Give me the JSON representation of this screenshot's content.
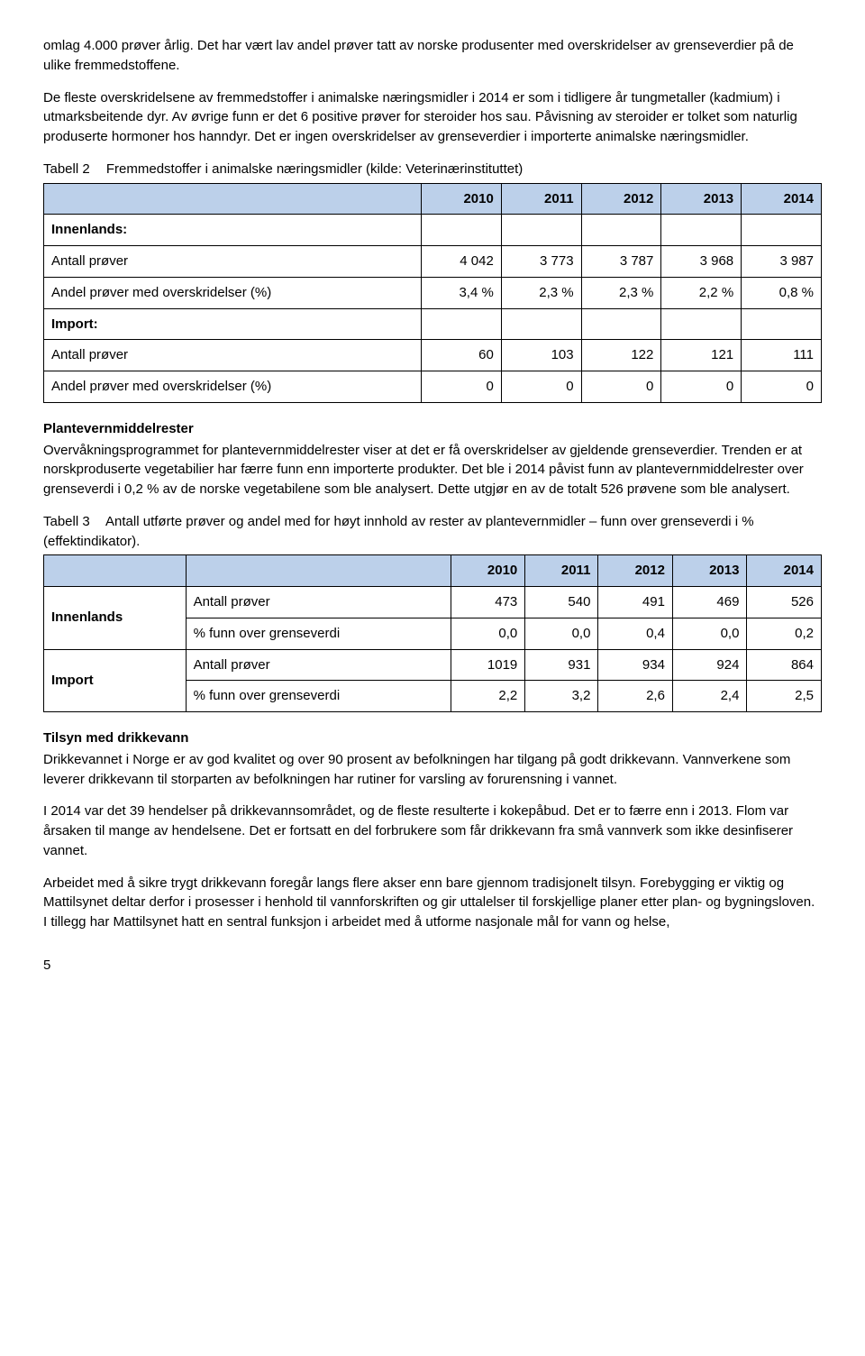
{
  "colors": {
    "table_header_bg": "#bcd0ea",
    "border": "#000000",
    "text": "#000000",
    "bg": "#ffffff"
  },
  "para1": "omlag 4.000 prøver årlig. Det har vært lav andel prøver tatt av norske produsenter med overskridelser av grenseverdier på de ulike fremmedstoffene.",
  "para2": "De fleste overskridelsene av fremmedstoffer i animalske næringsmidler i 2014 er som i tidligere år tungmetaller (kadmium) i utmarksbeitende dyr. Av øvrige funn er det 6 positive prøver for steroider hos sau. Påvisning av steroider er tolket som naturlig produserte hormoner hos hanndyr. Det er ingen overskridelser av grenseverdier i importerte animalske næringsmidler.",
  "table2": {
    "label": "Tabell 2",
    "title": "Fremmedstoffer i animalske næringsmidler (kilde: Veterinærinstituttet)",
    "years": [
      "2010",
      "2011",
      "2012",
      "2013",
      "2014"
    ],
    "sections": {
      "innenlands": "Innenlands:",
      "import": "Import:"
    },
    "rows": {
      "r1_label": "Antall prøver",
      "r1": [
        "4 042",
        "3 773",
        "3 787",
        "3 968",
        "3 987"
      ],
      "r2_label": "Andel prøver med overskridelser (%)",
      "r2": [
        "3,4 %",
        "2,3 %",
        "2,3 %",
        "2,2 %",
        "0,8 %"
      ],
      "r3_label": "Antall prøver",
      "r3": [
        "60",
        "103",
        "122",
        "121",
        "111"
      ],
      "r4_label": "Andel prøver med overskridelser (%)",
      "r4": [
        "0",
        "0",
        "0",
        "0",
        "0"
      ]
    }
  },
  "plantHead": "Plantevernmiddelrester",
  "plantPara": "Overvåkningsprogrammet for plantevernmiddelrester viser at det er få overskridelser av gjeldende grenseverdier. Trenden er at norskproduserte vegetabilier har færre funn enn importerte produkter. Det ble i 2014 påvist funn av plantevernmiddelrester over grenseverdi i 0,2 % av de norske vegetabilene som ble analysert. Dette utgjør en av de totalt 526 prøvene som ble analysert.",
  "table3": {
    "label": "Tabell 3",
    "title": "Antall utførte prøver og andel med for høyt innhold av rester av plantevernmidler – funn over grenseverdi i % (effektindikator).",
    "years": [
      "2010",
      "2011",
      "2012",
      "2013",
      "2014"
    ],
    "groups": {
      "innenlands": "Innenlands",
      "import": "Import"
    },
    "rows": {
      "a_label": "Antall prøver",
      "a": [
        "473",
        "540",
        "491",
        "469",
        "526"
      ],
      "b_label": "% funn over grenseverdi",
      "b": [
        "0,0",
        "0,0",
        "0,4",
        "0,0",
        "0,2"
      ],
      "c_label": "Antall prøver",
      "c": [
        "1019",
        "931",
        "934",
        "924",
        "864"
      ],
      "d_label": "% funn over grenseverdi",
      "d": [
        "2,2",
        "3,2",
        "2,6",
        "2,4",
        "2,5"
      ]
    }
  },
  "drikkHead": "Tilsyn med drikkevann",
  "drikkP1": "Drikkevannet i Norge er av god kvalitet og over 90 prosent av befolkningen har tilgang på godt drikkevann. Vannverkene som leverer drikkevann til storparten av befolkningen har rutiner for varsling av forurensning i vannet.",
  "drikkP2": "I 2014 var det 39 hendelser på drikkevannsområdet, og de fleste resulterte i kokepåbud. Det er to færre enn i 2013. Flom var årsaken til mange av hendelsene. Det er fortsatt  en del forbrukere som får drikkevann fra små vannverk som ikke desinfiserer vannet.",
  "drikkP3": "Arbeidet med å sikre trygt drikkevann foregår langs flere akser enn bare gjennom tradisjonelt tilsyn. Forebygging er viktig og Mattilsynet deltar derfor i prosesser i henhold til vannforskriften og gir uttalelser til forskjellige planer etter plan- og bygningsloven. I tillegg har Mattilsynet hatt en sentral funksjon i arbeidet med å utforme nasjonale mål for vann og helse,",
  "pageNumber": "5"
}
